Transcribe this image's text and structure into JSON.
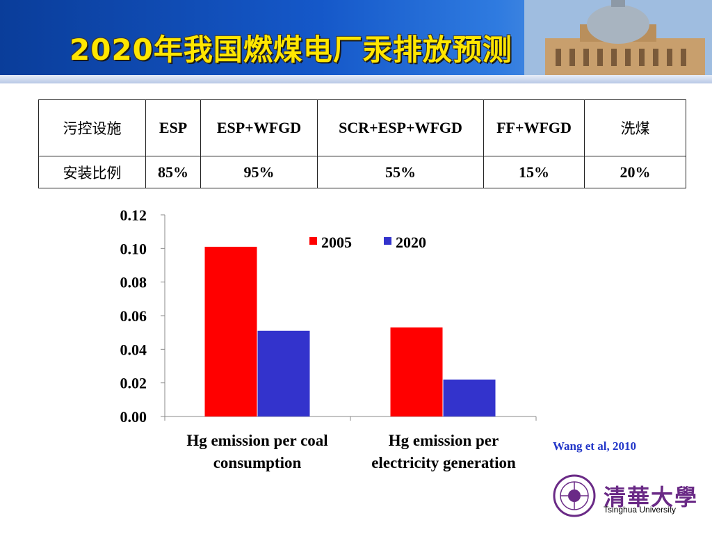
{
  "slide": {
    "title": "2020年我国燃煤电厂汞排放预测",
    "credit": "Wang et al, 2010",
    "logo_cn": "清華大學",
    "logo_en": "Tsinghua University"
  },
  "control_table": {
    "row_headers": [
      "污控设施",
      "安装比例"
    ],
    "columns": [
      "ESP",
      "ESP+WFGD",
      "SCR+ESP+WFGD",
      "FF+WFGD",
      "洗煤"
    ],
    "values": [
      "85%",
      "95%",
      "55%",
      "15%",
      "20%"
    ]
  },
  "chart_data": {
    "type": "bar",
    "title": "",
    "xlabel": "",
    "ylabel": "",
    "categories": [
      "Hg emission per coal consumption",
      "Hg emission per electricity generation"
    ],
    "category_lines": [
      [
        "Hg emission per coal",
        "consumption"
      ],
      [
        "Hg emission per",
        "electricity generation"
      ]
    ],
    "series": [
      {
        "name": "2005",
        "values": [
          0.101,
          0.053
        ],
        "color": "#ff0000"
      },
      {
        "name": "2020",
        "values": [
          0.051,
          0.022
        ],
        "color": "#3333cc"
      }
    ],
    "ylim": [
      0,
      0.12
    ],
    "yticks": [
      "0.00",
      "0.02",
      "0.04",
      "0.06",
      "0.08",
      "0.10",
      "0.12"
    ],
    "legend_position": "top-right",
    "grid": false
  },
  "colors": {
    "title": "#ffe600",
    "banner": "#1558c9",
    "credit": "#2236c8"
  }
}
